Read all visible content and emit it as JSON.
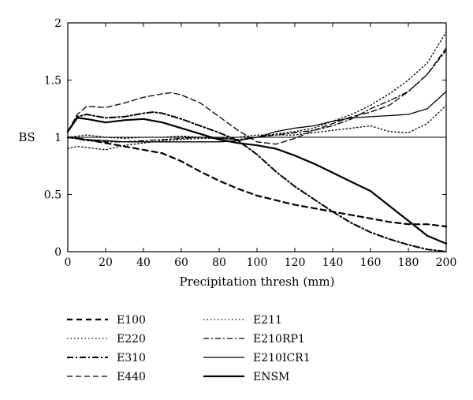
{
  "chart_data": {
    "type": "line",
    "xlabel": "Precipitation thresh (mm)",
    "ylabel": "BS",
    "xlim": [
      0,
      200
    ],
    "ylim": [
      0,
      2
    ],
    "xticks": [
      "0",
      "20",
      "40",
      "60",
      "80",
      "100",
      "120",
      "140",
      "160",
      "180",
      "200"
    ],
    "yticks": [
      "0",
      "0.5",
      "1",
      "1.5",
      "2"
    ],
    "reference_line": 1,
    "grid": false,
    "legend_position": "below",
    "series": [
      {
        "name": "E100",
        "dash": "dashed-heavy",
        "x": [
          0,
          10,
          20,
          30,
          40,
          50,
          60,
          70,
          80,
          90,
          100,
          110,
          120,
          130,
          140,
          150,
          160,
          170,
          180,
          190,
          200
        ],
        "y": [
          1.0,
          0.98,
          0.95,
          0.92,
          0.89,
          0.86,
          0.79,
          0.7,
          0.62,
          0.55,
          0.49,
          0.45,
          0.41,
          0.38,
          0.35,
          0.32,
          0.29,
          0.26,
          0.24,
          0.24,
          0.22
        ]
      },
      {
        "name": "E220",
        "dash": "dotted",
        "x": [
          0,
          5,
          10,
          20,
          30,
          40,
          50,
          60,
          70,
          80,
          90,
          100,
          110,
          120,
          130,
          140,
          150,
          160,
          170,
          180,
          190,
          200
        ],
        "y": [
          0.9,
          0.92,
          0.91,
          0.89,
          0.93,
          0.95,
          0.97,
          0.98,
          0.99,
          0.99,
          1.0,
          1.02,
          1.02,
          1.02,
          1.04,
          1.06,
          1.08,
          1.1,
          1.05,
          1.04,
          1.12,
          1.28
        ]
      },
      {
        "name": "E310",
        "dash": "dashdot-heavy",
        "x": [
          0,
          5,
          10,
          20,
          30,
          40,
          45,
          50,
          60,
          70,
          80,
          90,
          100,
          110,
          120,
          130,
          140,
          150,
          160,
          170,
          180,
          190,
          200
        ],
        "y": [
          1.05,
          1.18,
          1.2,
          1.17,
          1.18,
          1.21,
          1.22,
          1.21,
          1.16,
          1.1,
          1.04,
          0.97,
          0.85,
          0.7,
          0.57,
          0.46,
          0.35,
          0.25,
          0.17,
          0.11,
          0.06,
          0.02,
          0.0
        ]
      },
      {
        "name": "E440",
        "dash": "dashed-light",
        "x": [
          0,
          5,
          10,
          20,
          30,
          40,
          50,
          55,
          60,
          70,
          80,
          90,
          100,
          110,
          120,
          130,
          140,
          150,
          160,
          170,
          180,
          190,
          200
        ],
        "y": [
          1.05,
          1.2,
          1.27,
          1.26,
          1.3,
          1.35,
          1.38,
          1.39,
          1.37,
          1.3,
          1.18,
          1.06,
          0.96,
          0.94,
          0.99,
          1.06,
          1.12,
          1.18,
          1.22,
          1.28,
          1.4,
          1.55,
          1.78
        ]
      },
      {
        "name": "E211",
        "dash": "dotted",
        "x": [
          0,
          10,
          20,
          30,
          40,
          50,
          60,
          70,
          80,
          90,
          100,
          110,
          120,
          130,
          140,
          150,
          160,
          170,
          180,
          190,
          200
        ],
        "y": [
          1.0,
          1.02,
          1.0,
          0.99,
          1.0,
          1.0,
          1.01,
          1.0,
          0.99,
          0.98,
          1.0,
          1.03,
          1.05,
          1.08,
          1.14,
          1.2,
          1.28,
          1.38,
          1.5,
          1.65,
          1.92
        ]
      },
      {
        "name": "E210RP1",
        "dash": "dashdot-light",
        "x": [
          0,
          10,
          20,
          30,
          40,
          50,
          60,
          70,
          80,
          90,
          100,
          110,
          120,
          130,
          140,
          150,
          160,
          170,
          180,
          190,
          200
        ],
        "y": [
          1.0,
          0.97,
          0.96,
          0.96,
          0.97,
          0.98,
          0.99,
          1.0,
          0.99,
          0.98,
          1.0,
          1.02,
          1.04,
          1.06,
          1.1,
          1.16,
          1.25,
          1.32,
          1.4,
          1.55,
          1.76
        ]
      },
      {
        "name": "E210ICR1",
        "dash": "solid-light",
        "x": [
          0,
          10,
          20,
          30,
          40,
          50,
          60,
          70,
          80,
          90,
          100,
          110,
          120,
          130,
          140,
          150,
          160,
          170,
          180,
          190,
          200
        ],
        "y": [
          1.0,
          0.98,
          0.97,
          0.96,
          0.96,
          0.96,
          0.96,
          0.96,
          0.96,
          0.97,
          1.0,
          1.05,
          1.08,
          1.1,
          1.14,
          1.17,
          1.18,
          1.19,
          1.2,
          1.25,
          1.4
        ]
      },
      {
        "name": "ENSM",
        "dash": "solid-heavy",
        "x": [
          0,
          5,
          10,
          20,
          30,
          40,
          50,
          60,
          70,
          80,
          90,
          100,
          110,
          120,
          130,
          140,
          150,
          160,
          170,
          180,
          190,
          200
        ],
        "y": [
          1.05,
          1.17,
          1.16,
          1.13,
          1.15,
          1.16,
          1.13,
          1.08,
          1.03,
          0.98,
          0.95,
          0.93,
          0.9,
          0.84,
          0.77,
          0.69,
          0.61,
          0.53,
          0.4,
          0.27,
          0.14,
          0.07
        ]
      }
    ]
  }
}
